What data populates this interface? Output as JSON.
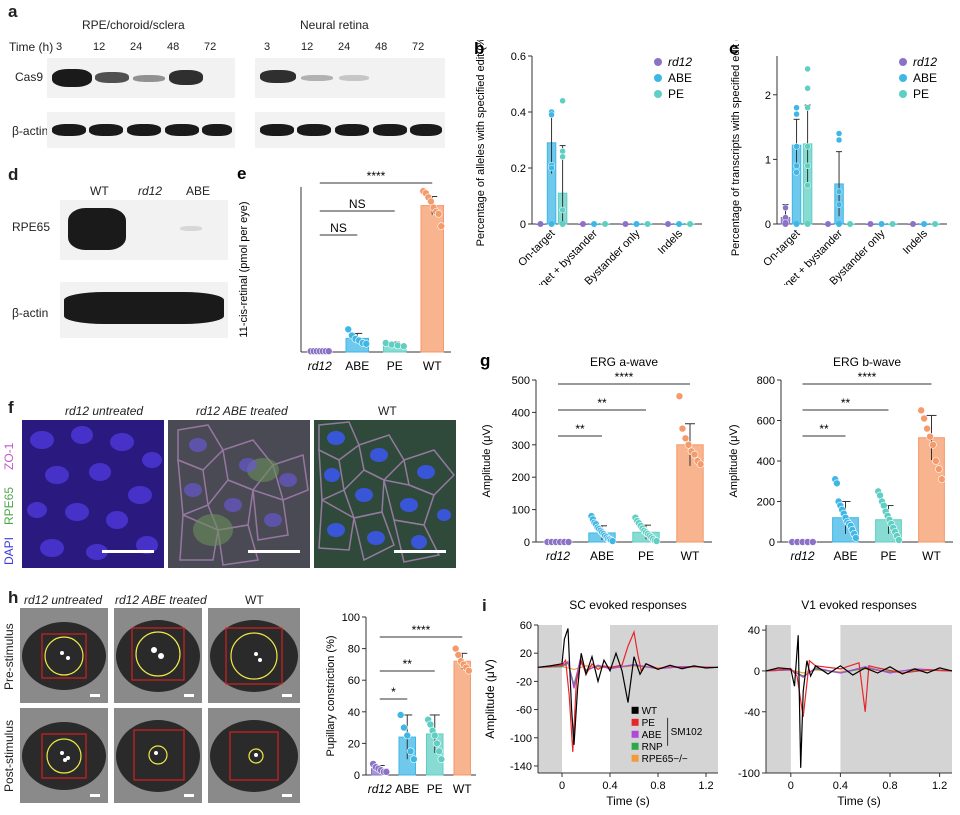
{
  "panels": {
    "a": {
      "label": "a",
      "time_label": "Time (h)",
      "groups": [
        "RPE/choroid/sclera",
        "Neural retina"
      ],
      "times": [
        "3",
        "12",
        "24",
        "48",
        "72"
      ],
      "rows": [
        "Cas9",
        "β-actin"
      ]
    },
    "d": {
      "label": "d",
      "lanes": [
        "WT",
        "rd12",
        "ABE"
      ],
      "rows": [
        "RPE65",
        "β-actin"
      ]
    },
    "f": {
      "label": "f",
      "titles": [
        "rd12 untreated",
        "rd12 ABE treated",
        "WT"
      ],
      "stains": [
        "ZO-1",
        "RPE65",
        "DAPI"
      ]
    },
    "h": {
      "label": "h",
      "titles": [
        "rd12 untreated",
        "rd12 ABE treated",
        "WT"
      ],
      "rows": [
        "Pre-stimulus",
        "Post-stimulus"
      ]
    }
  },
  "chart_data": [
    {
      "id": "b",
      "label": "b",
      "type": "bar",
      "ylabel": "Percentage of alleles with specified edit (%)",
      "categories": [
        "On-target",
        "On-target + bystander",
        "Bystander only",
        "Indels"
      ],
      "ylim": [
        0,
        0.6
      ],
      "yticks": [
        0,
        0.2,
        0.4,
        0.6
      ],
      "series": [
        {
          "name": "rd12",
          "color": "#8b72c6",
          "values": [
            0,
            0,
            0,
            0
          ],
          "err": [
            0,
            0,
            0,
            0
          ],
          "points": [
            [],
            [],
            [],
            []
          ]
        },
        {
          "name": "ABE",
          "color": "#3fb7e6",
          "values": [
            0.29,
            0,
            0,
            0
          ],
          "err": [
            0.11,
            0,
            0,
            0
          ],
          "points": [
            [
              0.4,
              0.39,
              0.21,
              0.2
            ],
            [],
            [],
            []
          ]
        },
        {
          "name": "PE",
          "color": "#5fcfc4",
          "values": [
            0.11,
            0,
            0,
            0
          ],
          "err": [
            0.17,
            0,
            0,
            0
          ],
          "points": [
            [
              0.44,
              0.26,
              0.24,
              0.05
            ],
            [],
            [],
            []
          ]
        }
      ],
      "legend": "top-right"
    },
    {
      "id": "c",
      "label": "c",
      "type": "bar",
      "ylabel": "Percentage of transcripts with specified edit (%)",
      "categories": [
        "On-target",
        "On-target + bystander",
        "Bystander only",
        "Indels"
      ],
      "ylim": [
        0,
        2.6
      ],
      "yticks": [
        0,
        1,
        2
      ],
      "series": [
        {
          "name": "rd12",
          "color": "#8b72c6",
          "values": [
            0.1,
            0,
            0,
            0
          ],
          "err": [
            0.2,
            0,
            0,
            0
          ],
          "points": [
            [
              0.25,
              0.1,
              0.02
            ],
            [],
            [],
            []
          ]
        },
        {
          "name": "ABE",
          "color": "#3fb7e6",
          "values": [
            1.22,
            0.62,
            0,
            0
          ],
          "err": [
            0.4,
            0.5,
            0,
            0
          ],
          "points": [
            [
              1.8,
              1.7,
              1.2,
              0.9,
              0.8
            ],
            [
              1.4,
              1.3,
              0.5,
              0.3
            ],
            [],
            []
          ]
        },
        {
          "name": "PE",
          "color": "#5fcfc4",
          "values": [
            1.24,
            0,
            0,
            0
          ],
          "err": [
            0.6,
            0,
            0,
            0
          ],
          "points": [
            [
              2.4,
              2.1,
              1.8,
              1.2,
              0.9,
              0.6
            ],
            [],
            [],
            []
          ]
        }
      ],
      "legend": "top-right"
    },
    {
      "id": "e",
      "label": "e",
      "type": "bar",
      "ylabel": "11-cis-retinal (pmol per eye)",
      "categories": [
        "rd12",
        "ABE",
        "PE",
        "WT"
      ],
      "colors": [
        "#8b72c6",
        "#3fb7e6",
        "#5fcfc4",
        "#f59a6a"
      ],
      "values": [
        2,
        33,
        18,
        355
      ],
      "err": [
        1,
        12,
        6,
        22
      ],
      "points": [
        [
          2,
          2,
          2,
          2,
          2,
          2,
          2
        ],
        [
          55,
          40,
          32,
          28,
          22,
          20
        ],
        [
          22,
          18,
          16,
          14
        ],
        [
          390,
          385,
          375,
          365,
          350,
          340,
          335,
          305
        ]
      ],
      "ylim": [
        0,
        400
      ],
      "significance": [
        {
          "from": "rd12",
          "to": "ABE",
          "text": "NS"
        },
        {
          "from": "rd12",
          "to": "PE",
          "text": "NS"
        },
        {
          "from": "rd12",
          "to": "WT",
          "text": "****"
        }
      ]
    },
    {
      "id": "g1",
      "label": "g",
      "type": "bar",
      "title": "ERG a-wave",
      "ylabel": "Amplitude (μV)",
      "categories": [
        "rd12",
        "ABE",
        "PE",
        "WT"
      ],
      "colors": [
        "#8b72c6",
        "#3fb7e6",
        "#5fcfc4",
        "#f59a6a"
      ],
      "values": [
        0,
        28,
        30,
        300
      ],
      "err": [
        2,
        22,
        22,
        65
      ],
      "points": [
        [
          0,
          0,
          0,
          0,
          0,
          0
        ],
        [
          80,
          70,
          60,
          55,
          45,
          40,
          35,
          30,
          25,
          20,
          15,
          10,
          8,
          5,
          3
        ],
        [
          75,
          65,
          58,
          50,
          42,
          35,
          30,
          25,
          20,
          15,
          10,
          5,
          3
        ],
        [
          450,
          350,
          320,
          300,
          280,
          270,
          250,
          240
        ]
      ],
      "ylim": [
        0,
        500
      ],
      "yticks": [
        0,
        100,
        200,
        300,
        400,
        500
      ],
      "significance": [
        {
          "from": "rd12",
          "to": "ABE",
          "text": "**"
        },
        {
          "from": "rd12",
          "to": "PE",
          "text": "**"
        },
        {
          "from": "rd12",
          "to": "WT",
          "text": "****"
        }
      ]
    },
    {
      "id": "g2",
      "label": "",
      "type": "bar",
      "title": "ERG b-wave",
      "ylabel": "Amplitude (μV)",
      "categories": [
        "rd12",
        "ABE",
        "PE",
        "WT"
      ],
      "colors": [
        "#8b72c6",
        "#3fb7e6",
        "#5fcfc4",
        "#f59a6a"
      ],
      "values": [
        0,
        120,
        110,
        515
      ],
      "err": [
        3,
        80,
        70,
        110
      ],
      "points": [
        [
          0,
          0,
          0,
          0,
          0
        ],
        [
          310,
          290,
          200,
          180,
          160,
          140,
          120,
          100,
          90,
          80,
          60,
          40,
          20
        ],
        [
          250,
          230,
          200,
          180,
          150,
          130,
          110,
          90,
          70,
          50,
          30,
          10
        ],
        [
          650,
          610,
          560,
          520,
          480,
          400,
          360,
          310
        ]
      ],
      "ylim": [
        0,
        800
      ],
      "yticks": [
        0,
        200,
        400,
        600,
        800
      ],
      "significance": [
        {
          "from": "rd12",
          "to": "ABE",
          "text": "**"
        },
        {
          "from": "rd12",
          "to": "PE",
          "text": "**"
        },
        {
          "from": "rd12",
          "to": "WT",
          "text": "****"
        }
      ]
    },
    {
      "id": "h2",
      "label": "",
      "type": "bar",
      "ylabel": "Pupillary constriction (%)",
      "categories": [
        "rd12",
        "ABE",
        "PE",
        "WT"
      ],
      "colors": [
        "#8b72c6",
        "#3fb7e6",
        "#5fcfc4",
        "#f59a6a"
      ],
      "values": [
        4,
        24,
        26,
        72
      ],
      "err": [
        2,
        14,
        12,
        5
      ],
      "points": [
        [
          7,
          5,
          4,
          3,
          2,
          2
        ],
        [
          38,
          30,
          25,
          15,
          10
        ],
        [
          35,
          32,
          28,
          25,
          20,
          15,
          10
        ],
        [
          80,
          76,
          72,
          70,
          68,
          66
        ]
      ],
      "ylim": [
        0,
        100
      ],
      "yticks": [
        0,
        20,
        40,
        60,
        80,
        100
      ],
      "significance": [
        {
          "from": "rd12",
          "to": "ABE",
          "text": "*"
        },
        {
          "from": "rd12",
          "to": "PE",
          "text": "**"
        },
        {
          "from": "rd12",
          "to": "WT",
          "text": "****"
        }
      ]
    },
    {
      "id": "i1",
      "label": "i",
      "type": "line",
      "title": "SC evoked responses",
      "ylabel": "Amplitude (μV)",
      "xlabel": "Time (s)",
      "xlim": [
        -0.2,
        1.3
      ],
      "ylim": [
        -150,
        60
      ],
      "xticks": [
        0,
        0.4,
        0.8,
        1.2
      ],
      "yticks": [
        -140,
        -100,
        -60,
        -20,
        20,
        60
      ],
      "shaded": [
        [
          -0.2,
          0.0
        ],
        [
          0.4,
          1.3
        ]
      ],
      "series": [
        {
          "name": "WT",
          "color": "#000000",
          "x": [
            -0.2,
            -0.1,
            0,
            0.02,
            0.05,
            0.08,
            0.1,
            0.13,
            0.16,
            0.2,
            0.25,
            0.3,
            0.35,
            0.4,
            0.45,
            0.5,
            0.55,
            0.6,
            0.65,
            0.7,
            0.8,
            0.9,
            1.0,
            1.1,
            1.2,
            1.3
          ],
          "y": [
            0,
            2,
            5,
            40,
            55,
            -60,
            -110,
            -30,
            20,
            -10,
            15,
            -20,
            10,
            -5,
            20,
            -5,
            -50,
            15,
            -10,
            5,
            -3,
            3,
            -2,
            2,
            -1,
            0
          ]
        },
        {
          "name": "PE",
          "color": "#e8262a",
          "x": [
            -0.2,
            -0.1,
            0,
            0.03,
            0.06,
            0.09,
            0.12,
            0.16,
            0.2,
            0.25,
            0.3,
            0.35,
            0.4,
            0.5,
            0.55,
            0.6,
            0.63,
            0.66,
            0.7,
            0.8,
            0.9,
            1.0,
            1.1,
            1.2,
            1.3
          ],
          "y": [
            0,
            1,
            3,
            10,
            -40,
            -120,
            -20,
            10,
            -10,
            5,
            -3,
            2,
            0,
            3,
            30,
            50,
            20,
            -5,
            5,
            -2,
            2,
            -1,
            1,
            0,
            0
          ]
        },
        {
          "name": "ABE",
          "color": "#b04ad6",
          "x": [
            -0.2,
            0,
            0.05,
            0.1,
            0.15,
            0.2,
            0.3,
            0.4,
            0.6,
            0.8,
            1.0,
            1.3
          ],
          "y": [
            0,
            2,
            8,
            -30,
            10,
            -5,
            3,
            -2,
            4,
            -2,
            1,
            0
          ]
        },
        {
          "name": "RNP",
          "color": "#2aa84a",
          "x": [
            -0.2,
            0,
            0.05,
            0.1,
            0.15,
            0.2,
            0.3,
            0.4,
            0.6,
            0.8,
            1.0,
            1.3
          ],
          "y": [
            0,
            1,
            6,
            -25,
            8,
            -4,
            2,
            -1,
            3,
            -2,
            1,
            0
          ]
        },
        {
          "name": "RPE65−/−",
          "color": "#f39a3a",
          "x": [
            -0.2,
            0,
            0.1,
            0.2,
            0.4,
            0.6,
            0.8,
            1.0,
            1.3
          ],
          "y": [
            0,
            1,
            -3,
            2,
            -1,
            2,
            -1,
            1,
            0
          ]
        }
      ],
      "legend_group_label": "SM102",
      "legend": "bottom-left"
    },
    {
      "id": "i2",
      "label": "",
      "type": "line",
      "title": "V1 evoked responses",
      "xlabel": "Time (s)",
      "xlim": [
        -0.2,
        1.3
      ],
      "ylim": [
        -100,
        45
      ],
      "xticks": [
        0,
        0.4,
        0.8,
        1.2
      ],
      "yticks": [
        -100,
        -40,
        0,
        40
      ],
      "shaded": [
        [
          -0.2,
          0.0
        ],
        [
          0.4,
          1.3
        ]
      ],
      "series": [
        {
          "name": "WT",
          "color": "#000000",
          "x": [
            -0.2,
            -0.1,
            0,
            0.03,
            0.06,
            0.08,
            0.1,
            0.13,
            0.16,
            0.2,
            0.3,
            0.4,
            0.5,
            0.6,
            0.7,
            0.8,
            0.9,
            1.0,
            1.1,
            1.2,
            1.3
          ],
          "y": [
            0,
            3,
            2,
            -15,
            35,
            -95,
            -20,
            10,
            -5,
            5,
            -3,
            5,
            -4,
            3,
            -2,
            4,
            -3,
            2,
            -2,
            3,
            0
          ]
        },
        {
          "name": "PE",
          "color": "#e8262a",
          "x": [
            -0.2,
            0,
            0.05,
            0.1,
            0.15,
            0.2,
            0.4,
            0.55,
            0.6,
            0.63,
            0.7,
            0.9,
            1.1,
            1.3
          ],
          "y": [
            0,
            2,
            -5,
            -45,
            10,
            5,
            2,
            8,
            -40,
            5,
            3,
            -2,
            1,
            0
          ]
        },
        {
          "name": "ABE",
          "color": "#b04ad6",
          "x": [
            -0.2,
            0,
            0.1,
            0.2,
            0.4,
            0.6,
            0.8,
            1.0,
            1.3
          ],
          "y": [
            0,
            1,
            -6,
            3,
            -2,
            4,
            -2,
            2,
            0
          ]
        },
        {
          "name": "RNP",
          "color": "#2aa84a",
          "x": [
            -0.2,
            0,
            0.1,
            0.2,
            0.4,
            0.6,
            0.8,
            1.0,
            1.3
          ],
          "y": [
            0,
            1,
            -5,
            2,
            -2,
            3,
            -1,
            1,
            0
          ]
        },
        {
          "name": "RPE65−/−",
          "color": "#f39a3a",
          "x": [
            -0.2,
            0,
            0.1,
            0.2,
            0.4,
            0.6,
            0.8,
            1.0,
            1.3
          ],
          "y": [
            0,
            1,
            -2,
            1,
            -1,
            2,
            -1,
            1,
            0
          ]
        }
      ]
    }
  ]
}
